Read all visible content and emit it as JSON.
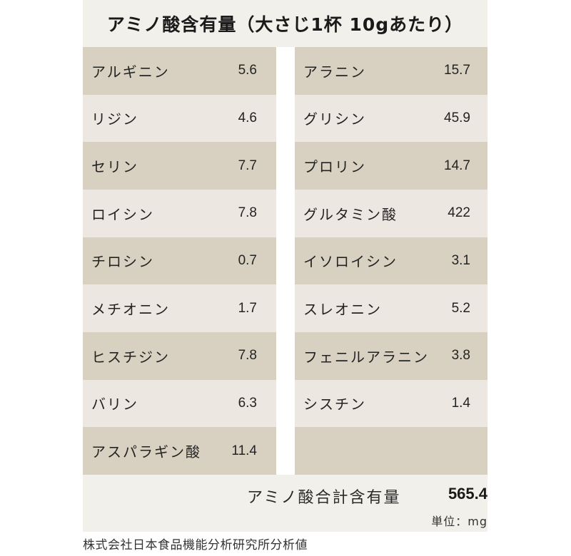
{
  "title": "アミノ酸含有量（大さじ1杯 10gあたり）",
  "left_rows": [
    {
      "name": "アルギニン",
      "value": "5.6"
    },
    {
      "name": "リジン",
      "value": "4.6"
    },
    {
      "name": "セリン",
      "value": "7.7"
    },
    {
      "name": "ロイシン",
      "value": "7.8"
    },
    {
      "name": "チロシン",
      "value": "0.7"
    },
    {
      "name": "メチオニン",
      "value": "1.7"
    },
    {
      "name": "ヒスチジン",
      "value": "7.8"
    },
    {
      "name": "バリン",
      "value": "6.3"
    },
    {
      "name": "アスパラギン酸",
      "value": "11.4"
    }
  ],
  "right_rows": [
    {
      "name": "アラニン",
      "value": "15.7"
    },
    {
      "name": "グリシン",
      "value": "45.9"
    },
    {
      "name": "プロリン",
      "value": "14.7"
    },
    {
      "name": "グルタミン酸",
      "value": "422"
    },
    {
      "name": "イソロイシン",
      "value": "3.1"
    },
    {
      "name": "スレオニン",
      "value": "5.2"
    },
    {
      "name": "フェニルアラニン",
      "value": "3.8"
    },
    {
      "name": "シスチン",
      "value": "1.4"
    },
    {
      "name": "",
      "value": ""
    }
  ],
  "total": {
    "label": "アミノ酸合計含有量",
    "value": "565.4"
  },
  "unit": "単位：mg",
  "source": "株式会社日本食品機能分析研究所分析値",
  "colors": {
    "dark_row": "#d8d1c1",
    "light_row": "#ece7e0",
    "background": "#f2f0eb"
  }
}
